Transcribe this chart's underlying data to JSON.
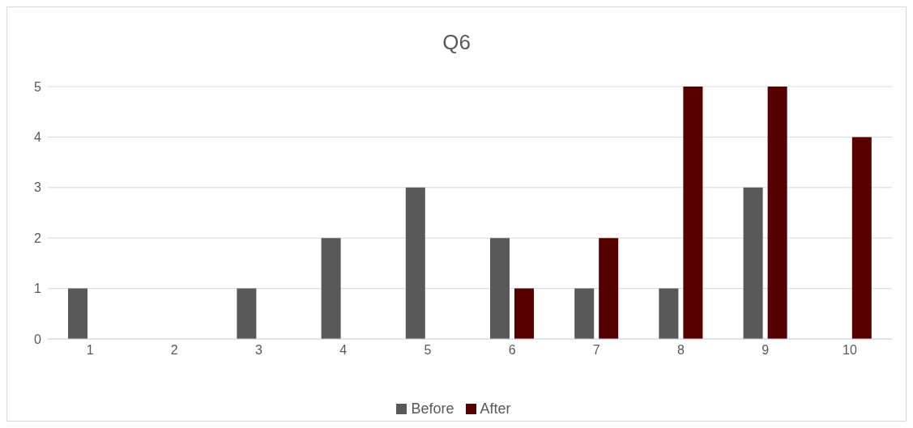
{
  "chart_data": {
    "type": "bar",
    "title": "Q6",
    "categories": [
      "1",
      "2",
      "3",
      "4",
      "5",
      "6",
      "7",
      "8",
      "9",
      "10"
    ],
    "series": [
      {
        "name": "Before",
        "color": "#595959",
        "values": [
          1,
          0,
          1,
          2,
          3,
          2,
          1,
          1,
          3,
          0
        ]
      },
      {
        "name": "After",
        "color": "#560000",
        "values": [
          0,
          0,
          0,
          0,
          0,
          1,
          2,
          5,
          5,
          4
        ]
      }
    ],
    "ylim": [
      0,
      5
    ],
    "yticks": [
      0,
      1,
      2,
      3,
      4,
      5
    ],
    "grid": "y",
    "legend": "bottom"
  }
}
